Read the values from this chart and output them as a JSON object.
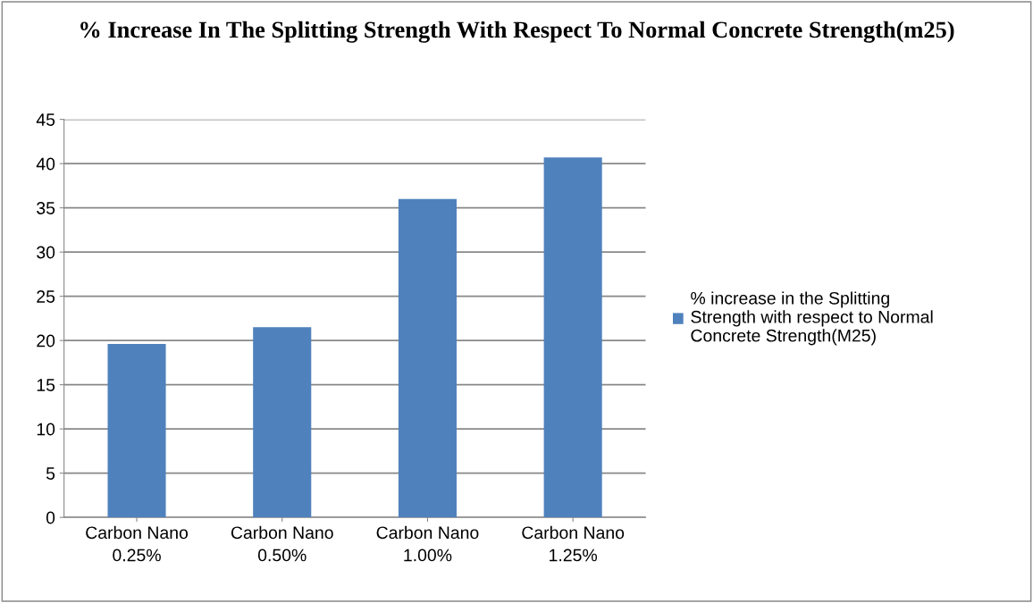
{
  "chart_data": {
    "type": "bar",
    "title": "% Increase In The Splitting Strength With Respect To Normal Concrete Strength(m25)",
    "categories": [
      "Carbon Nano\n0.25%",
      "Carbon Nano\n0.50%",
      "Carbon Nano\n1.00%",
      "Carbon Nano\n1.25%"
    ],
    "series": [
      {
        "name": "% increase in the Splitting\nStrength with respect to Normal\nConcrete Strength(M25)",
        "color": "#4f81bd",
        "values": [
          19.6,
          21.5,
          36.0,
          40.7
        ]
      }
    ],
    "ylim": [
      0,
      45
    ],
    "yticks": [
      0,
      5,
      10,
      15,
      20,
      25,
      30,
      35,
      40,
      45
    ],
    "grid": "y",
    "legend": "right"
  }
}
